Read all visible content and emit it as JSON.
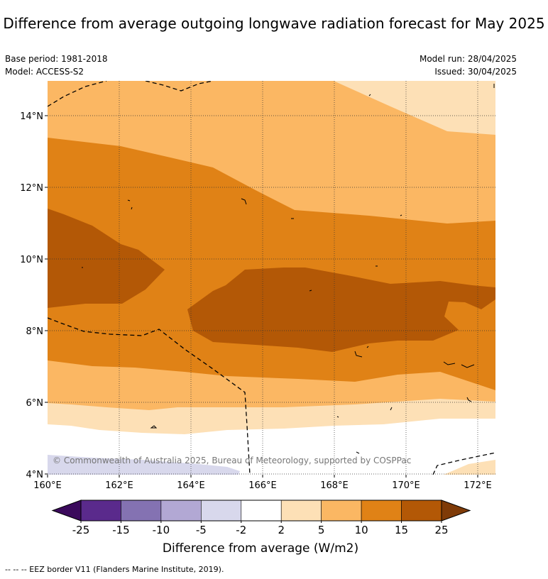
{
  "title": "Difference from average outgoing longwave radiation forecast for May 2025",
  "base_period": "Base period: 1981-2018",
  "model": "Model: ACCESS-S2",
  "model_run": "Model run: 28/04/2025",
  "issued": "Issued: 30/04/2025",
  "copyright": "© Commonwealth of Australia 2025, Bureau of Meteorology, supported by COSPPac",
  "footnote": "--  --  -- EEZ border V11 (Flanders Marine Institute, 2019).",
  "map": {
    "lon_ticks": [
      "160°E",
      "162°E",
      "164°E",
      "166°E",
      "168°E",
      "170°E",
      "172°E"
    ],
    "lat_ticks": [
      "14°N",
      "12°N",
      "10°N",
      "8°N",
      "6°N",
      "4°N"
    ]
  },
  "colorbar": {
    "label": "Difference from average (W/m2)",
    "ticks": [
      "-25",
      "-15",
      "-10",
      "-5",
      "-2",
      "2",
      "5",
      "10",
      "15",
      "25"
    ],
    "colors": [
      "#3b0a5c",
      "#5a2a8c",
      "#8472b2",
      "#b2a8d4",
      "#d8d8ec",
      "#ffffff",
      "#fde0b6",
      "#fbb763",
      "#e08216",
      "#b35806",
      "#7f3b08"
    ]
  }
}
